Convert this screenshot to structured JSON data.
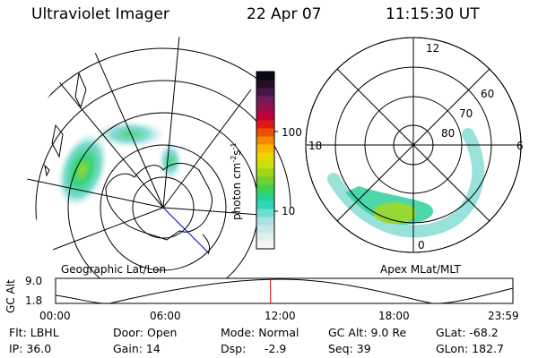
{
  "header": {
    "instrument": "Ultraviolet Imager",
    "date": "22 Apr 07",
    "time": "11:15:30 UT"
  },
  "colorbar": {
    "unit_label": "photon cm",
    "unit_sup1": "-2",
    "unit_mid": "s",
    "unit_sup2": "-1",
    "tick_labels": [
      "100",
      "10"
    ],
    "colors": [
      "#f5f5f5",
      "#e3eeee",
      "#c8e8e8",
      "#a8e2e2",
      "#70dcd0",
      "#30d6b8",
      "#28d290",
      "#40d050",
      "#70d030",
      "#a0d818",
      "#ccde10",
      "#e8d800",
      "#f8b800",
      "#f88a00",
      "#ec5000",
      "#dc1a1a",
      "#c0003a",
      "#98104a",
      "#701c56",
      "#481648",
      "#241026",
      "#0a0a14"
    ]
  },
  "left_panel": {
    "label": "Geographic Lat/Lon"
  },
  "right_panel": {
    "label": "Apex  MLat/MLT",
    "lat_labels": [
      "60",
      "70",
      "80"
    ],
    "mlt_labels": [
      "12",
      "18",
      "6",
      "0"
    ]
  },
  "altitude_plot": {
    "axis_label": "GC Alt",
    "y_ticks": [
      "9.0",
      "1.8"
    ],
    "x_ticks": [
      "00:00",
      "06:00",
      "12:00",
      "18:00",
      "23:59"
    ],
    "current_time_fraction": 0.47
  },
  "info": {
    "filter": "Flt: LBHL",
    "ip": "IP: 36.0",
    "door": "Door: Open",
    "gain": "Gain: 14",
    "mode": "Mode: Normal",
    "dsp_label": "Dsp:",
    "dsp_value": "-2.9",
    "gc_alt": "GC Alt: 9.0 Re",
    "seq": "Seq: 39",
    "glat": "GLat: -68.2",
    "glon": "GLon: 182.7"
  },
  "colors": {
    "ink": "#000000",
    "time_marker": "#cc0000",
    "meridian": "#0000cc"
  }
}
